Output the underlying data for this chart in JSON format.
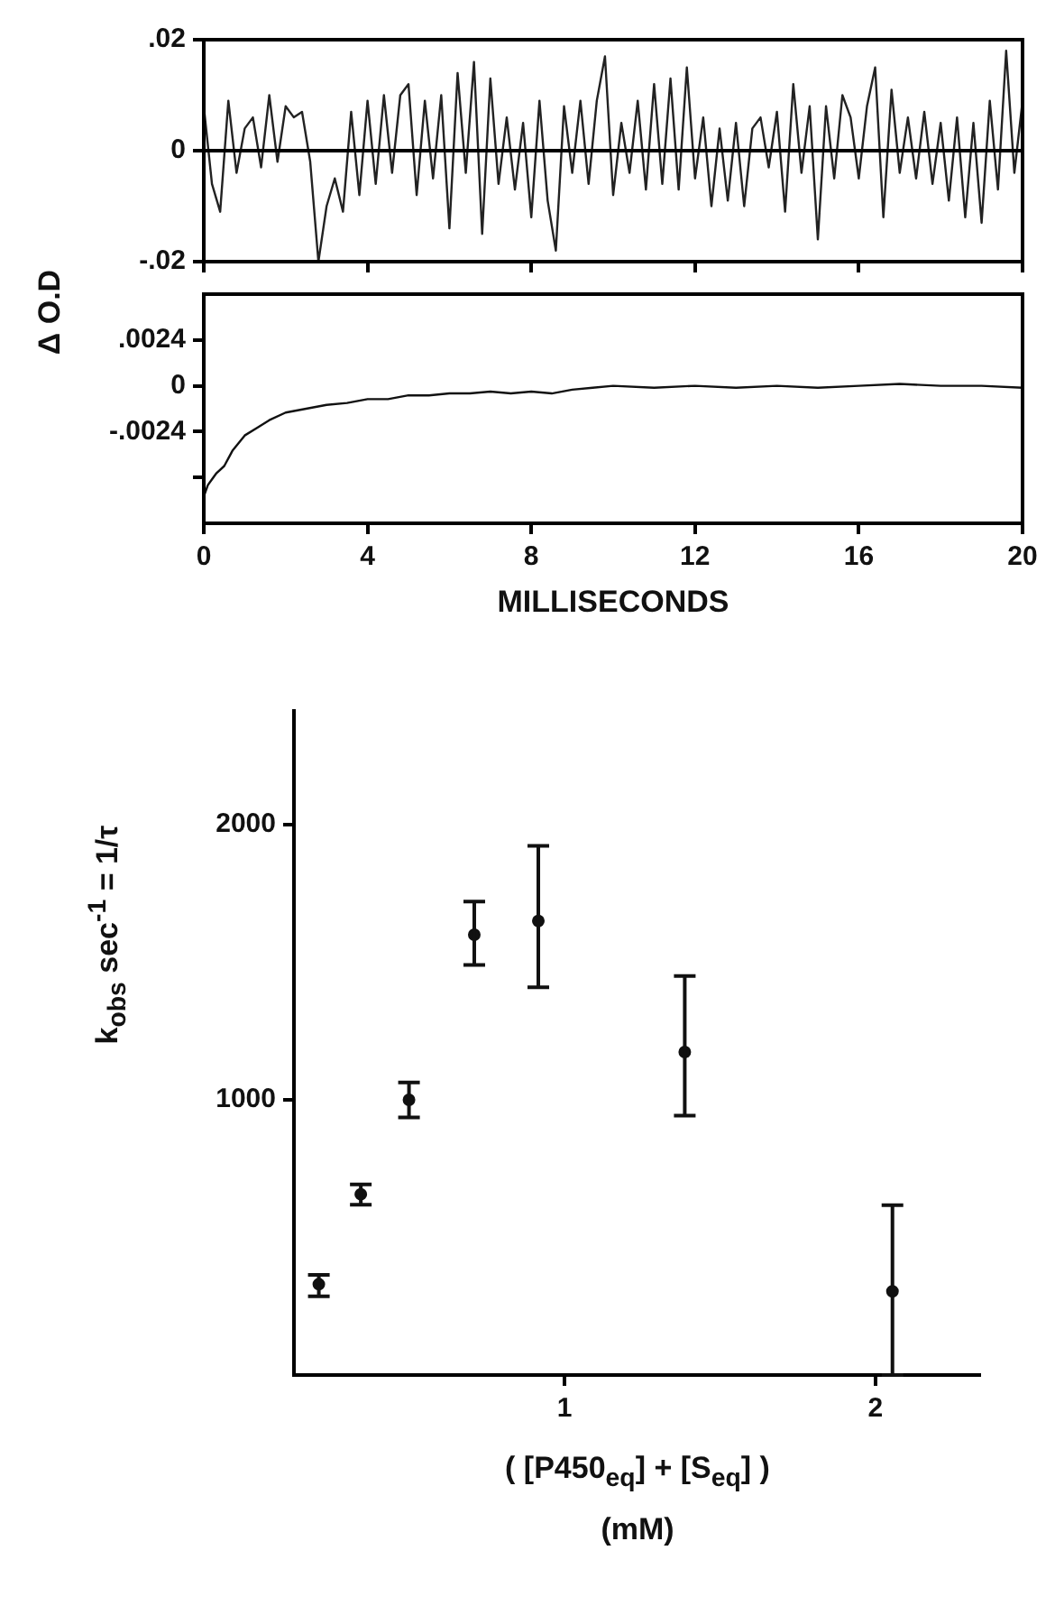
{
  "chart_data": [
    {
      "type": "line",
      "x": [
        0,
        0.2,
        0.4,
        0.6,
        0.8,
        1,
        1.2,
        1.4,
        1.6,
        1.8,
        2,
        2.2,
        2.4,
        2.6,
        2.8,
        3,
        3.2,
        3.4,
        3.6,
        3.8,
        4,
        4.2,
        4.4,
        4.6,
        4.8,
        5,
        5.2,
        5.4,
        5.6,
        5.8,
        6,
        6.2,
        6.4,
        6.6,
        6.8,
        7,
        7.2,
        7.4,
        7.6,
        7.8,
        8,
        8.2,
        8.4,
        8.6,
        8.8,
        9,
        9.2,
        9.4,
        9.6,
        9.8,
        10,
        10.2,
        10.4,
        10.6,
        10.8,
        11,
        11.2,
        11.4,
        11.6,
        11.8,
        12,
        12.2,
        12.4,
        12.6,
        12.8,
        13,
        13.2,
        13.4,
        13.6,
        13.8,
        14,
        14.2,
        14.4,
        14.6,
        14.8,
        15,
        15.2,
        15.4,
        15.6,
        15.8,
        16,
        16.2,
        16.4,
        16.6,
        16.8,
        17,
        17.2,
        17.4,
        17.6,
        17.8,
        18,
        18.2,
        18.4,
        18.6,
        18.8,
        19,
        19.2,
        19.4,
        19.6,
        19.8,
        20
      ],
      "series": [
        {
          "color": "#222222",
          "values": [
            0.008,
            -0.006,
            -0.011,
            0.009,
            -0.004,
            0.004,
            0.006,
            -0.003,
            0.01,
            -0.002,
            0.008,
            0.006,
            0.007,
            -0.002,
            -0.02,
            -0.01,
            -0.005,
            -0.011,
            0.007,
            -0.008,
            0.009,
            -0.006,
            0.01,
            -0.004,
            0.01,
            0.012,
            -0.008,
            0.009,
            -0.005,
            0.01,
            -0.014,
            0.014,
            -0.004,
            0.016,
            -0.015,
            0.013,
            -0.006,
            0.006,
            -0.007,
            0.005,
            -0.012,
            0.009,
            -0.009,
            -0.018,
            0.008,
            -0.004,
            0.009,
            -0.006,
            0.009,
            0.017,
            -0.008,
            0.005,
            -0.004,
            0.009,
            -0.007,
            0.012,
            -0.006,
            0.013,
            -0.007,
            0.015,
            -0.005,
            0.006,
            -0.01,
            0.004,
            -0.009,
            0.005,
            -0.01,
            0.004,
            0.006,
            -0.003,
            0.007,
            -0.011,
            0.012,
            -0.004,
            0.008,
            -0.016,
            0.008,
            -0.005,
            0.01,
            0.006,
            -0.005,
            0.008,
            0.015,
            -0.012,
            0.011,
            -0.004,
            0.006,
            -0.005,
            0.007,
            -0.006,
            0.005,
            -0.009,
            0.006,
            -0.012,
            0.005,
            -0.013,
            0.009,
            -0.007,
            0.018,
            -0.004,
            0.009
          ]
        }
      ],
      "xlim": [
        0,
        20
      ],
      "xticks": [
        {
          "value": 0,
          "label": null
        },
        {
          "value": 4,
          "label": null
        },
        {
          "value": 8,
          "label": null
        },
        {
          "value": 12,
          "label": null
        },
        {
          "value": 16,
          "label": null
        },
        {
          "value": 20,
          "label": null
        }
      ],
      "ylim": [
        -0.02,
        0.02
      ],
      "yticks": [
        {
          "value": 0.02,
          "label": ".02"
        },
        0,
        {
          "value": -0.02,
          "label": "-.02"
        }
      ],
      "ref_lines": [
        {
          "axis": "y",
          "value": 0,
          "color": "#000000"
        }
      ],
      "tick_labels": "y",
      "grid": false,
      "legend": false
    },
    {
      "type": "line",
      "x": [
        0,
        0.1,
        0.2,
        0.3,
        0.5,
        0.7,
        1,
        1.3,
        1.6,
        2,
        2.5,
        3,
        3.5,
        4,
        4.5,
        5,
        5.5,
        6,
        6.5,
        7,
        7.5,
        8,
        8.5,
        9,
        9.5,
        10,
        11,
        12,
        13,
        14,
        15,
        16,
        17,
        18,
        19,
        20
      ],
      "series": [
        {
          "color": "#111111",
          "values": [
            -0.0058,
            -0.0052,
            -0.0049,
            -0.0046,
            -0.0042,
            -0.0034,
            -0.0026,
            -0.0022,
            -0.0018,
            -0.0014,
            -0.0012,
            -0.001,
            -0.0009,
            -0.0007,
            -0.0007,
            -0.0005,
            -0.0005,
            -0.0004,
            -0.0004,
            -0.0003,
            -0.0004,
            -0.0003,
            -0.0004,
            -0.0002,
            -0.0001,
            0,
            -0.0001,
            0,
            -0.0001,
            0,
            -0.0001,
            0,
            0.0001,
            0,
            0,
            -0.0001
          ]
        }
      ],
      "xlim": [
        0,
        20
      ],
      "xticks": [
        0,
        4,
        8,
        12,
        16,
        20
      ],
      "xlabel": "MILLISECONDS",
      "ylabel": "Δ O.D",
      "ylim": [
        -0.0072,
        0.0048
      ],
      "yticks": [
        {
          "value": 0.0024,
          "label": ".0024"
        },
        0,
        {
          "value": -0.0024,
          "label": "-.0024"
        },
        {
          "value": -0.0048,
          "label": null
        }
      ],
      "grid": false,
      "legend": false
    },
    {
      "type": "scatter",
      "x": [
        0.21,
        0.345,
        0.5,
        0.71,
        0.916,
        1.387,
        2.055
      ],
      "series": [
        {
          "color": "#111111",
          "values": [
            330,
            657,
            1000,
            1600,
            1650,
            1174,
            304
          ],
          "errors": [
            [
              286,
              364
            ],
            [
              619,
              693
            ],
            [
              936,
              1063
            ],
            [
              1490,
              1721
            ],
            [
              1409,
              1923
            ],
            [
              943,
              1450
            ],
            [
              0,
              617
            ]
          ]
        }
      ],
      "xlim": [
        0.13,
        2.34
      ],
      "xticks": [
        1,
        2
      ],
      "ylim": [
        0,
        2420
      ],
      "yticks": [
        1000,
        2000
      ],
      "xlabel": "( [P450$_{eq}$] + [S$_{eq}$] )",
      "ylabel": "k$_{obs}$ sec$^{-1}$ = 1/τ",
      "annotations": [
        "(mM)"
      ],
      "marker": "circle",
      "grid": false,
      "legend": false
    }
  ]
}
